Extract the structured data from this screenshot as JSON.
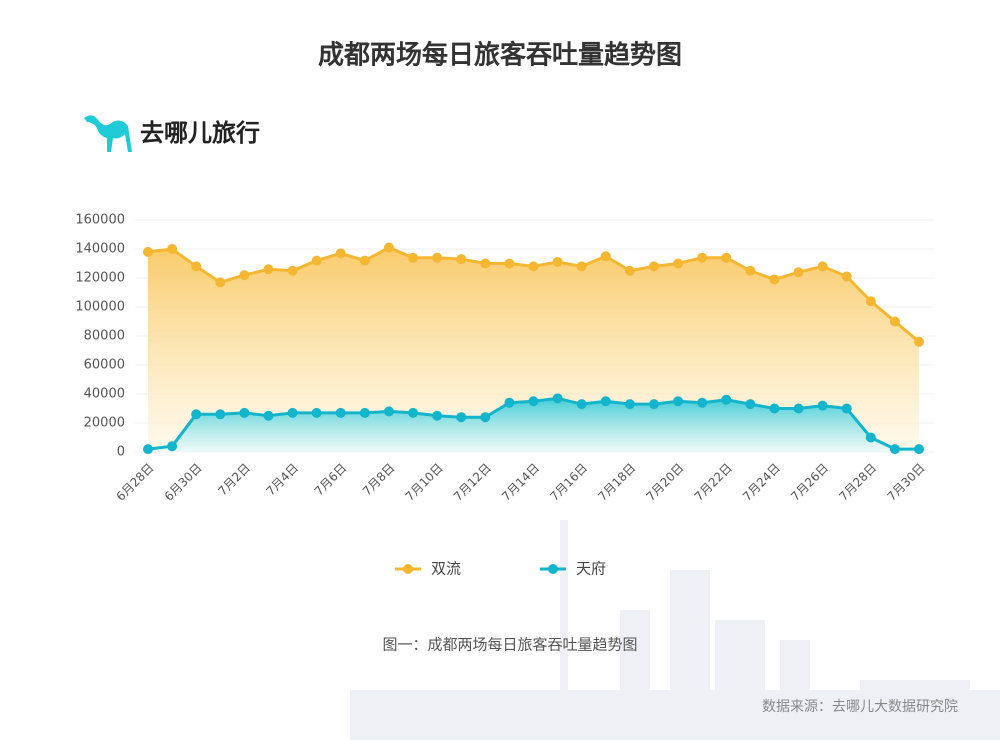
{
  "brand": "去哪儿旅行",
  "caption": "图一：成都两场每日旅客吞吐量趋势图",
  "source": "数据来源：去哪儿大数据研究院",
  "chart_data": {
    "type": "line",
    "title": "成都两场每日旅客吞吐量趋势图",
    "categories": [
      "6月28日",
      null,
      "6月30日",
      null,
      "7月2日",
      null,
      "7月4日",
      null,
      "7月6日",
      null,
      "7月8日",
      null,
      "7月10日",
      null,
      "7月12日",
      null,
      "7月14日",
      null,
      "7月16日",
      null,
      "7月18日",
      null,
      "7月20日",
      null,
      "7月22日",
      null,
      "7月24日",
      null,
      "7月26日",
      null,
      "7月28日",
      null,
      "7月30日"
    ],
    "series": [
      {
        "name": "双流",
        "color": "#f5b731",
        "values": [
          138000,
          140000,
          128000,
          117000,
          122000,
          126000,
          125000,
          132000,
          137000,
          132000,
          141000,
          134000,
          134000,
          133000,
          130000,
          130000,
          128000,
          131000,
          128000,
          135000,
          125000,
          128000,
          130000,
          134000,
          134000,
          125000,
          119000,
          124000,
          128000,
          121000,
          104000,
          90000,
          76000
        ]
      },
      {
        "name": "天府",
        "color": "#12b5cb",
        "values": [
          2000,
          4000,
          26000,
          26000,
          27000,
          25000,
          27000,
          27000,
          27000,
          27000,
          28000,
          27000,
          25000,
          24000,
          24000,
          34000,
          35000,
          37000,
          33000,
          35000,
          33000,
          33000,
          35000,
          34000,
          36000,
          33000,
          30000,
          30000,
          32000,
          30000,
          10000,
          2000,
          2000
        ]
      }
    ],
    "ylim": [
      0,
      160000
    ],
    "yticks": [
      0,
      20000,
      40000,
      60000,
      80000,
      100000,
      120000,
      140000,
      160000
    ],
    "grid": true,
    "legend": "bottom"
  }
}
